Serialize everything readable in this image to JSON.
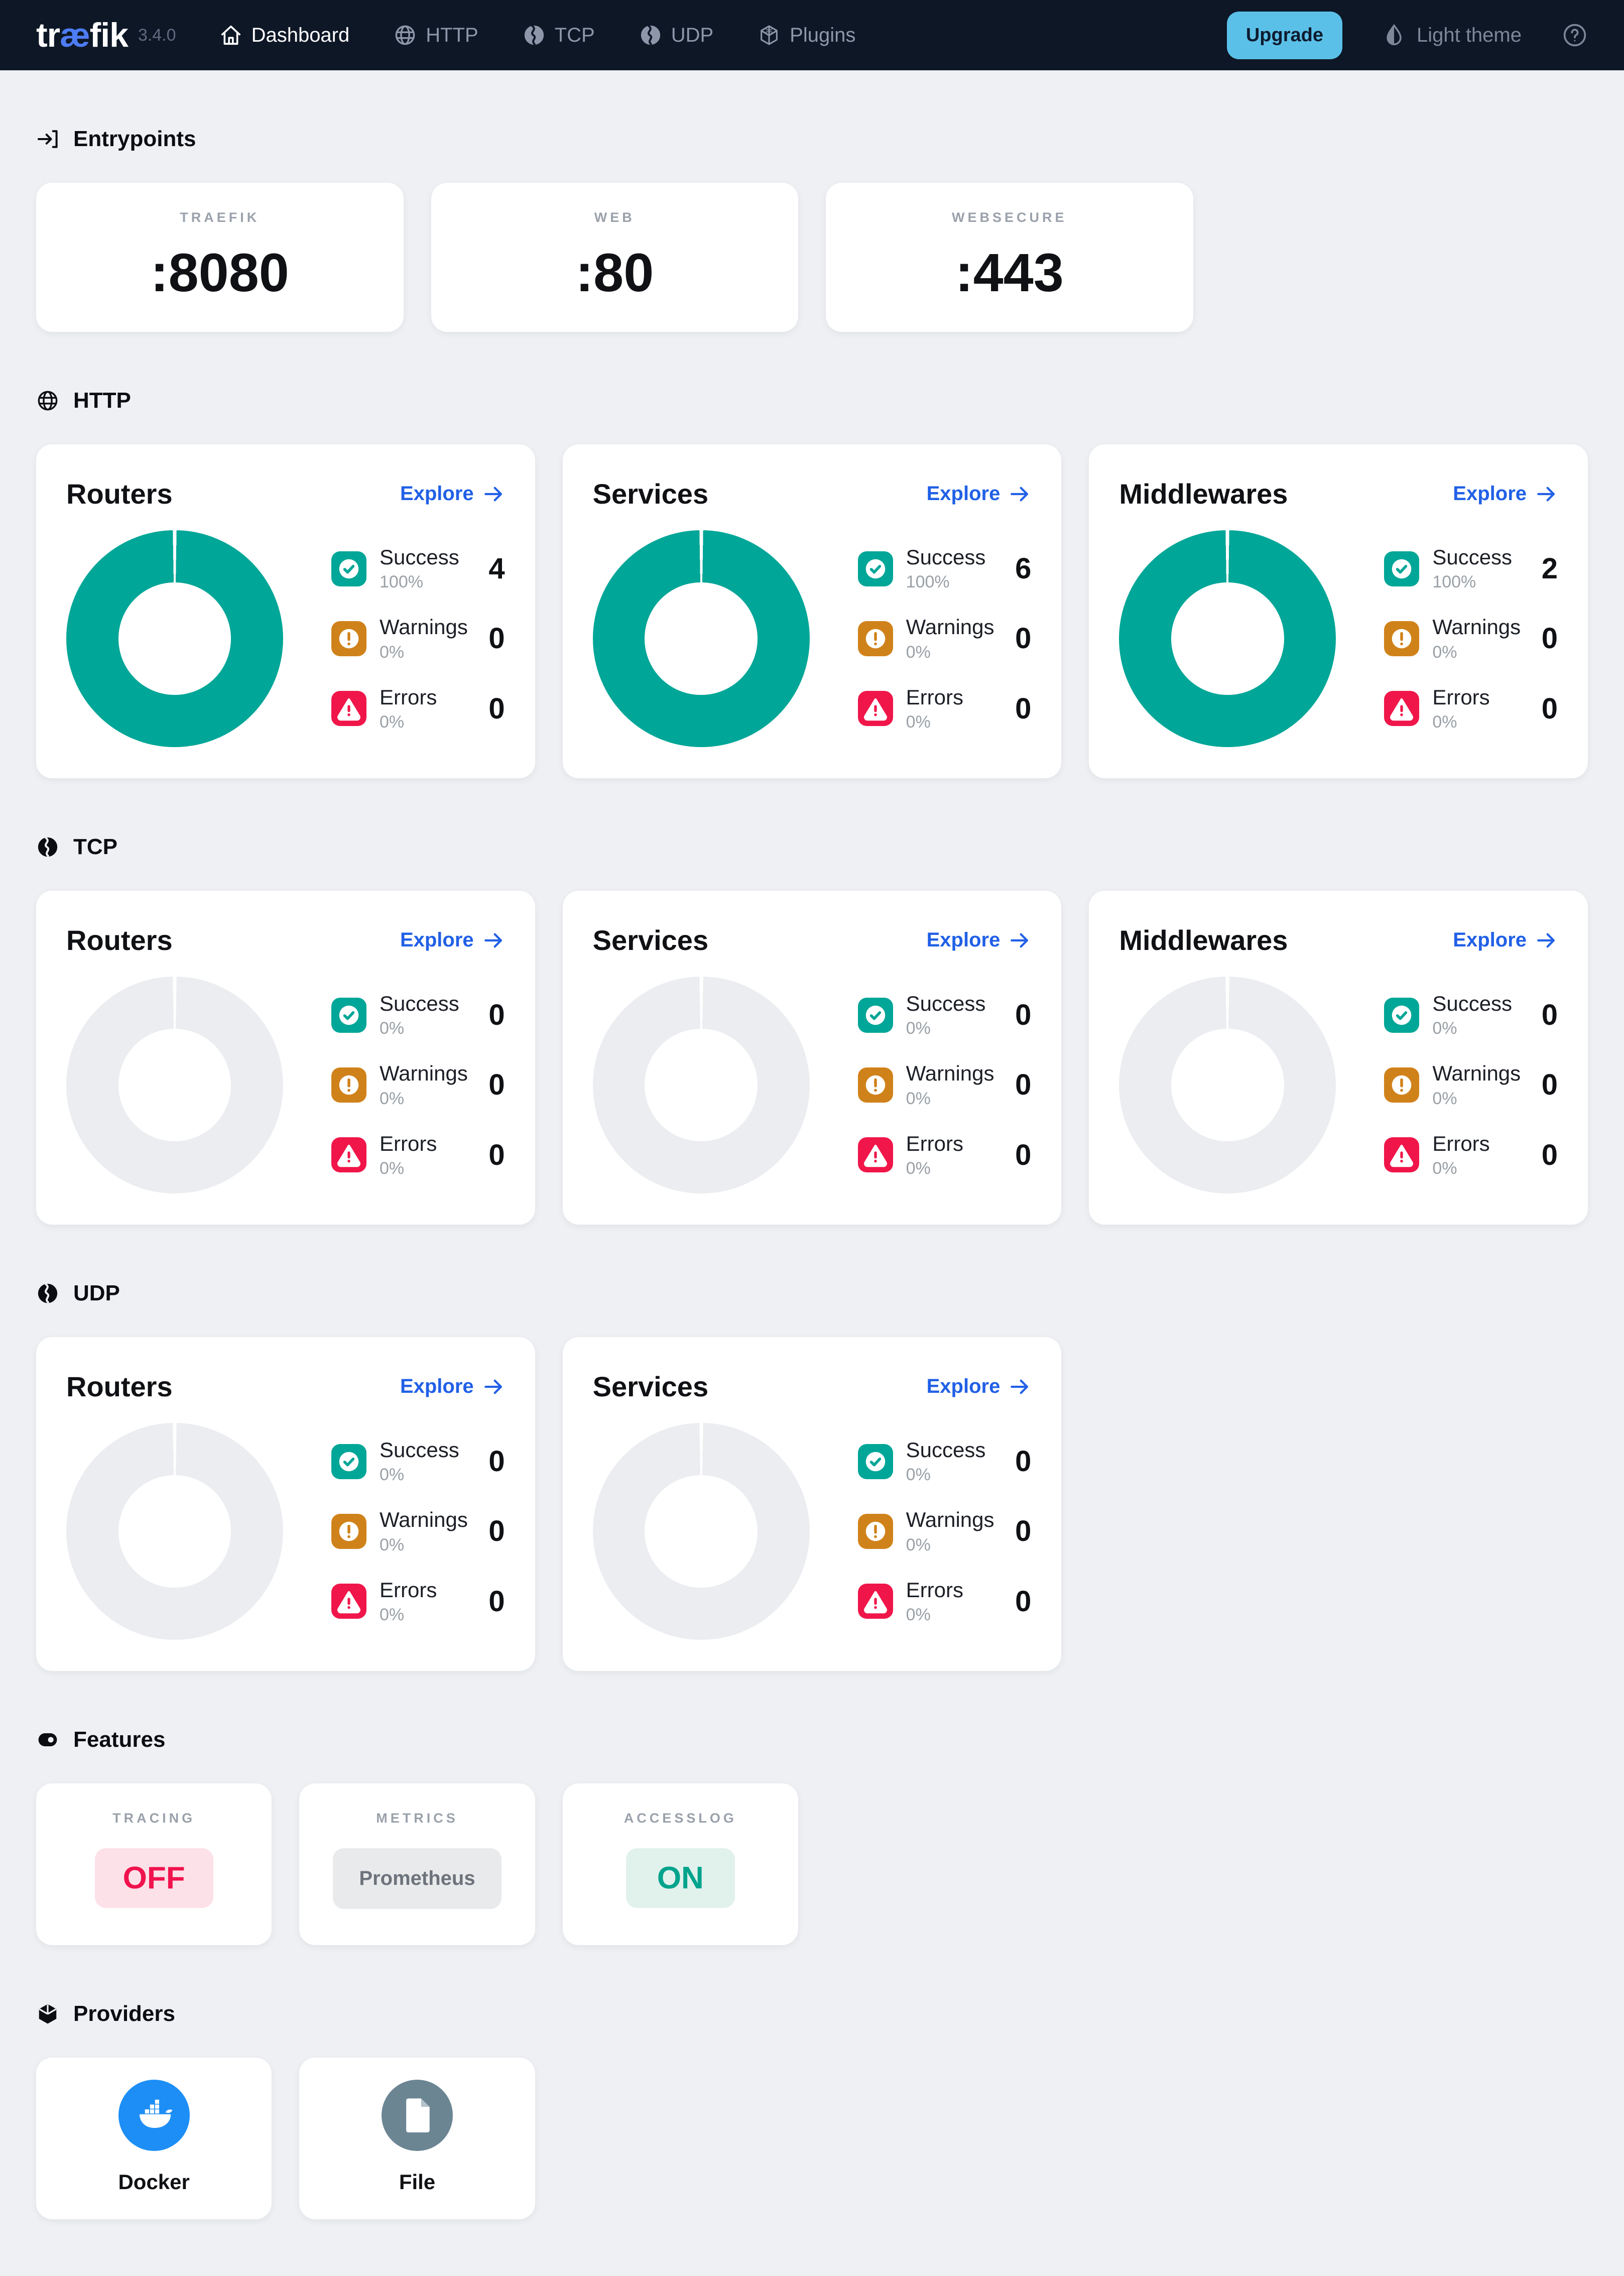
{
  "navbar": {
    "brand": "træfik",
    "version": "3.4.0",
    "items": [
      {
        "label": "Dashboard",
        "icon": "home-icon",
        "active": true
      },
      {
        "label": "HTTP",
        "icon": "globe-icon",
        "active": false
      },
      {
        "label": "TCP",
        "icon": "network-icon",
        "active": false
      },
      {
        "label": "UDP",
        "icon": "network-icon",
        "active": false
      },
      {
        "label": "Plugins",
        "icon": "plugins-icon",
        "active": false
      }
    ],
    "upgrade_label": "Upgrade",
    "theme_label": "Light theme"
  },
  "entrypoints": {
    "title": "Entrypoints",
    "icon": "entrypoints-icon",
    "cards": [
      {
        "name": "TRAEFIK",
        "value": ":8080"
      },
      {
        "name": "WEB",
        "value": ":80"
      },
      {
        "name": "WEBSECURE",
        "value": ":443"
      }
    ]
  },
  "protocol_sections": [
    {
      "id": "http",
      "title": "HTTP",
      "icon": "globe-icon",
      "cards": [
        {
          "title": "Routers",
          "explore_label": "Explore",
          "rows": [
            {
              "type": "success",
              "label": "Success",
              "pct": "100%",
              "value": "4"
            },
            {
              "type": "warning",
              "label": "Warnings",
              "pct": "0%",
              "value": "0"
            },
            {
              "type": "error",
              "label": "Errors",
              "pct": "0%",
              "value": "0"
            }
          ]
        },
        {
          "title": "Services",
          "explore_label": "Explore",
          "rows": [
            {
              "type": "success",
              "label": "Success",
              "pct": "100%",
              "value": "6"
            },
            {
              "type": "warning",
              "label": "Warnings",
              "pct": "0%",
              "value": "0"
            },
            {
              "type": "error",
              "label": "Errors",
              "pct": "0%",
              "value": "0"
            }
          ]
        },
        {
          "title": "Middlewares",
          "explore_label": "Explore",
          "rows": [
            {
              "type": "success",
              "label": "Success",
              "pct": "100%",
              "value": "2"
            },
            {
              "type": "warning",
              "label": "Warnings",
              "pct": "0%",
              "value": "0"
            },
            {
              "type": "error",
              "label": "Errors",
              "pct": "0%",
              "value": "0"
            }
          ]
        }
      ]
    },
    {
      "id": "tcp",
      "title": "TCP",
      "icon": "network-icon",
      "cards": [
        {
          "title": "Routers",
          "explore_label": "Explore",
          "rows": [
            {
              "type": "success",
              "label": "Success",
              "pct": "0%",
              "value": "0"
            },
            {
              "type": "warning",
              "label": "Warnings",
              "pct": "0%",
              "value": "0"
            },
            {
              "type": "error",
              "label": "Errors",
              "pct": "0%",
              "value": "0"
            }
          ]
        },
        {
          "title": "Services",
          "explore_label": "Explore",
          "rows": [
            {
              "type": "success",
              "label": "Success",
              "pct": "0%",
              "value": "0"
            },
            {
              "type": "warning",
              "label": "Warnings",
              "pct": "0%",
              "value": "0"
            },
            {
              "type": "error",
              "label": "Errors",
              "pct": "0%",
              "value": "0"
            }
          ]
        },
        {
          "title": "Middlewares",
          "explore_label": "Explore",
          "rows": [
            {
              "type": "success",
              "label": "Success",
              "pct": "0%",
              "value": "0"
            },
            {
              "type": "warning",
              "label": "Warnings",
              "pct": "0%",
              "value": "0"
            },
            {
              "type": "error",
              "label": "Errors",
              "pct": "0%",
              "value": "0"
            }
          ]
        }
      ]
    },
    {
      "id": "udp",
      "title": "UDP",
      "icon": "network-icon",
      "cards": [
        {
          "title": "Routers",
          "explore_label": "Explore",
          "rows": [
            {
              "type": "success",
              "label": "Success",
              "pct": "0%",
              "value": "0"
            },
            {
              "type": "warning",
              "label": "Warnings",
              "pct": "0%",
              "value": "0"
            },
            {
              "type": "error",
              "label": "Errors",
              "pct": "0%",
              "value": "0"
            }
          ]
        },
        {
          "title": "Services",
          "explore_label": "Explore",
          "rows": [
            {
              "type": "success",
              "label": "Success",
              "pct": "0%",
              "value": "0"
            },
            {
              "type": "warning",
              "label": "Warnings",
              "pct": "0%",
              "value": "0"
            },
            {
              "type": "error",
              "label": "Errors",
              "pct": "0%",
              "value": "0"
            }
          ]
        }
      ]
    }
  ],
  "features": {
    "title": "Features",
    "icon": "features-icon",
    "cards": [
      {
        "name": "TRACING",
        "value": "OFF",
        "state": "off"
      },
      {
        "name": "METRICS",
        "value": "Prometheus",
        "state": "neutral"
      },
      {
        "name": "ACCESSLOG",
        "value": "ON",
        "state": "on"
      }
    ]
  },
  "providers": {
    "title": "Providers",
    "icon": "providers-icon",
    "cards": [
      {
        "name": "Docker",
        "icon": "docker-icon",
        "color": "#1d8ef5"
      },
      {
        "name": "File",
        "icon": "file-icon",
        "color": "#6b8593"
      }
    ]
  },
  "colors": {
    "teal": "#00a697",
    "orange": "#d0821a",
    "red": "#f0164a",
    "blue": "#2160e6",
    "upgrade": "#5bc0e8",
    "navbar": "#0d1726",
    "page_bg": "#eef0f3",
    "ring_empty": "#ebedf0",
    "off_text": "#f0134d",
    "on_text": "#00a38c",
    "docker": "#1d8ef5",
    "file": "#6b8593"
  }
}
